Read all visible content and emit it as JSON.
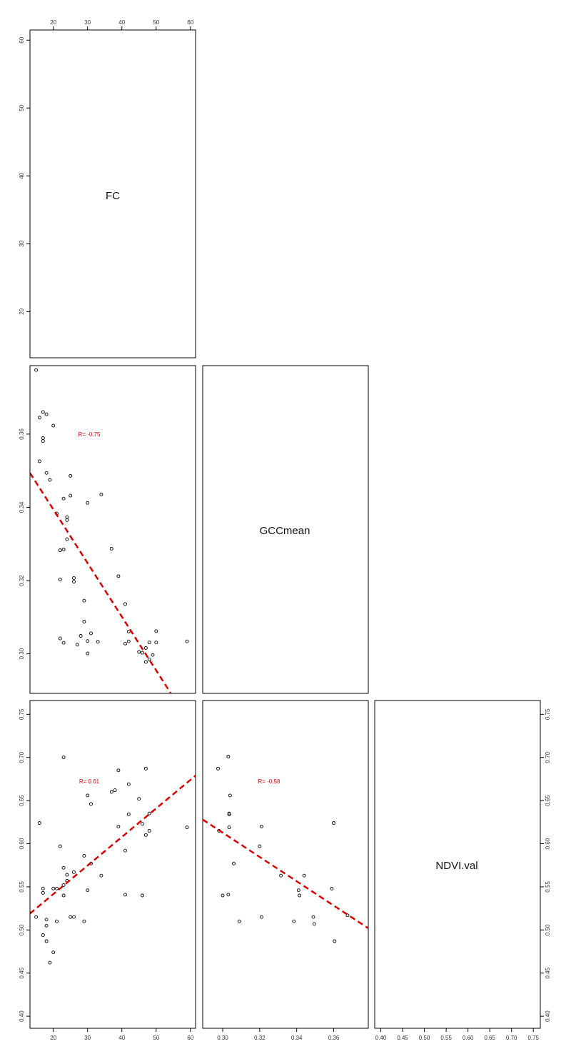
{
  "chart_data": {
    "type": "scatter",
    "layout": "pairs-matrix-lower-triangle",
    "variables": [
      "FC",
      "GCCmean",
      "NDVI.val"
    ],
    "axes": {
      "FC": {
        "ticks": [
          20,
          30,
          40,
          50,
          60
        ],
        "tick_labels": [
          "20",
          "30",
          "40",
          "50",
          "60"
        ],
        "range": [
          13.2,
          61.5
        ],
        "diag_ticks": [
          20,
          30,
          40,
          50,
          60
        ],
        "diag_tick_labels": [
          "20",
          "30",
          "40",
          "50",
          "60"
        ],
        "diag_range": [
          13.2,
          61.5
        ]
      },
      "GCCmean": {
        "ticks": [
          0.3,
          0.32,
          0.34,
          0.36
        ],
        "tick_labels": [
          "0.30",
          "0.32",
          "0.34",
          "0.36"
        ],
        "range": [
          0.2892,
          0.3787
        ]
      },
      "NDVI.val": {
        "ticks": [
          0.4,
          0.45,
          0.5,
          0.55,
          0.6,
          0.65,
          0.7,
          0.75
        ],
        "tick_labels": [
          "0.40",
          "0.45",
          "0.50",
          "0.55",
          "0.60",
          "0.65",
          "0.70",
          "0.75"
        ],
        "range": [
          0.386,
          0.766
        ]
      }
    },
    "panels": [
      {
        "id": "gcc-vs-fc",
        "x_var": "FC",
        "y_var": "GCCmean",
        "correlation_label": "R= -0.75",
        "fit": {
          "type": "linear",
          "points": [
            [
              13.2,
              0.3494
            ],
            [
              54.3,
              0.2892
            ]
          ],
          "color": "#dd0000",
          "dashed": true
        },
        "points": [
          [
            15,
            0.3775
          ],
          [
            16,
            0.3645
          ],
          [
            16,
            0.3526
          ],
          [
            17,
            0.3589
          ],
          [
            17,
            0.3581
          ],
          [
            17,
            0.366
          ],
          [
            18,
            0.3654
          ],
          [
            18,
            0.3494
          ],
          [
            19,
            0.3475
          ],
          [
            20,
            0.3623
          ],
          [
            21,
            0.3383
          ],
          [
            22,
            0.3283
          ],
          [
            22,
            0.3203
          ],
          [
            22,
            0.3042
          ],
          [
            23,
            0.3424
          ],
          [
            23,
            0.3285
          ],
          [
            23,
            0.303
          ],
          [
            24,
            0.3373
          ],
          [
            24,
            0.3365
          ],
          [
            24,
            0.3313
          ],
          [
            25,
            0.3432
          ],
          [
            25,
            0.3486
          ],
          [
            26,
            0.3207
          ],
          [
            26,
            0.3197
          ],
          [
            27,
            0.3025
          ],
          [
            28,
            0.3049
          ],
          [
            29,
            0.3145
          ],
          [
            29,
            0.3088
          ],
          [
            30,
            0.3412
          ],
          [
            30,
            0.3035
          ],
          [
            30,
            0.3001
          ],
          [
            31,
            0.3056
          ],
          [
            33,
            0.3033
          ],
          [
            34,
            0.3435
          ],
          [
            37,
            0.3287
          ],
          [
            39,
            0.3212
          ],
          [
            41,
            0.3136
          ],
          [
            41,
            0.3028
          ],
          [
            42,
            0.3034
          ],
          [
            42,
            0.3061
          ],
          [
            45,
            0.3005
          ],
          [
            46,
            0.3003
          ],
          [
            47,
            0.3016
          ],
          [
            47,
            0.2978
          ],
          [
            48,
            0.3031
          ],
          [
            48,
            0.2985
          ],
          [
            49,
            0.2997
          ],
          [
            50,
            0.3031
          ],
          [
            50,
            0.3062
          ],
          [
            59,
            0.3034
          ]
        ]
      },
      {
        "id": "ndvi-vs-fc",
        "x_var": "FC",
        "y_var": "NDVI.val",
        "correlation_label": "R= 0.61",
        "fit": {
          "type": "linear",
          "points": [
            [
              13.2,
              0.519
            ],
            [
              61.5,
              0.679
            ]
          ],
          "color": "#dd0000",
          "dashed": true
        },
        "points": [
          [
            15,
            0.515
          ],
          [
            16,
            0.624
          ],
          [
            17,
            0.548
          ],
          [
            17,
            0.543
          ],
          [
            17,
            0.494
          ],
          [
            18,
            0.505
          ],
          [
            18,
            0.512
          ],
          [
            18,
            0.487
          ],
          [
            19,
            0.462
          ],
          [
            20,
            0.474
          ],
          [
            20,
            0.548
          ],
          [
            21,
            0.548
          ],
          [
            21,
            0.51
          ],
          [
            22,
            0.597
          ],
          [
            23,
            0.572
          ],
          [
            23,
            0.54
          ],
          [
            23,
            0.552
          ],
          [
            23,
            0.7
          ],
          [
            24,
            0.564
          ],
          [
            24,
            0.557
          ],
          [
            25,
            0.515
          ],
          [
            26,
            0.567
          ],
          [
            26,
            0.515
          ],
          [
            29,
            0.586
          ],
          [
            29,
            0.51
          ],
          [
            30,
            0.656
          ],
          [
            30,
            0.546
          ],
          [
            31,
            0.646
          ],
          [
            31,
            0.577
          ],
          [
            34,
            0.563
          ],
          [
            37,
            0.66
          ],
          [
            38,
            0.662
          ],
          [
            39,
            0.685
          ],
          [
            39,
            0.62
          ],
          [
            41,
            0.592
          ],
          [
            41,
            0.541
          ],
          [
            42,
            0.669
          ],
          [
            42,
            0.634
          ],
          [
            45,
            0.652
          ],
          [
            46,
            0.623
          ],
          [
            46,
            0.54
          ],
          [
            47,
            0.687
          ],
          [
            47,
            0.61
          ],
          [
            48,
            0.615
          ],
          [
            48,
            0.635
          ],
          [
            59,
            0.619
          ]
        ]
      },
      {
        "id": "ndvi-vs-gcc",
        "x_var": "GCCmean",
        "y_var": "NDVI.val",
        "correlation_label": "R= -0.58",
        "fit": {
          "type": "linear",
          "points": [
            [
              0.2892,
              0.628
            ],
            [
              0.3787,
              0.502
            ]
          ],
          "color": "#dd0000",
          "dashed": true
        },
        "points": [
          [
            0.2975,
            0.687
          ],
          [
            0.298,
            0.615
          ],
          [
            0.3,
            0.54
          ],
          [
            0.303,
            0.701
          ],
          [
            0.303,
            0.541
          ],
          [
            0.3035,
            0.635
          ],
          [
            0.3035,
            0.634
          ],
          [
            0.3035,
            0.619
          ],
          [
            0.304,
            0.656
          ],
          [
            0.306,
            0.577
          ],
          [
            0.309,
            0.51
          ],
          [
            0.32,
            0.597
          ],
          [
            0.321,
            0.62
          ],
          [
            0.321,
            0.515
          ],
          [
            0.3315,
            0.563
          ],
          [
            0.3385,
            0.51
          ],
          [
            0.341,
            0.546
          ],
          [
            0.3415,
            0.54
          ],
          [
            0.344,
            0.563
          ],
          [
            0.349,
            0.515
          ],
          [
            0.3495,
            0.507
          ],
          [
            0.359,
            0.548
          ],
          [
            0.36,
            0.624
          ],
          [
            0.3605,
            0.487
          ],
          [
            0.3675,
            0.517
          ]
        ]
      }
    ],
    "colors": {
      "points": "#000000",
      "fit": "#dd0000",
      "corr_text": "#dd0000",
      "frame": "#000000"
    },
    "grid": false
  }
}
